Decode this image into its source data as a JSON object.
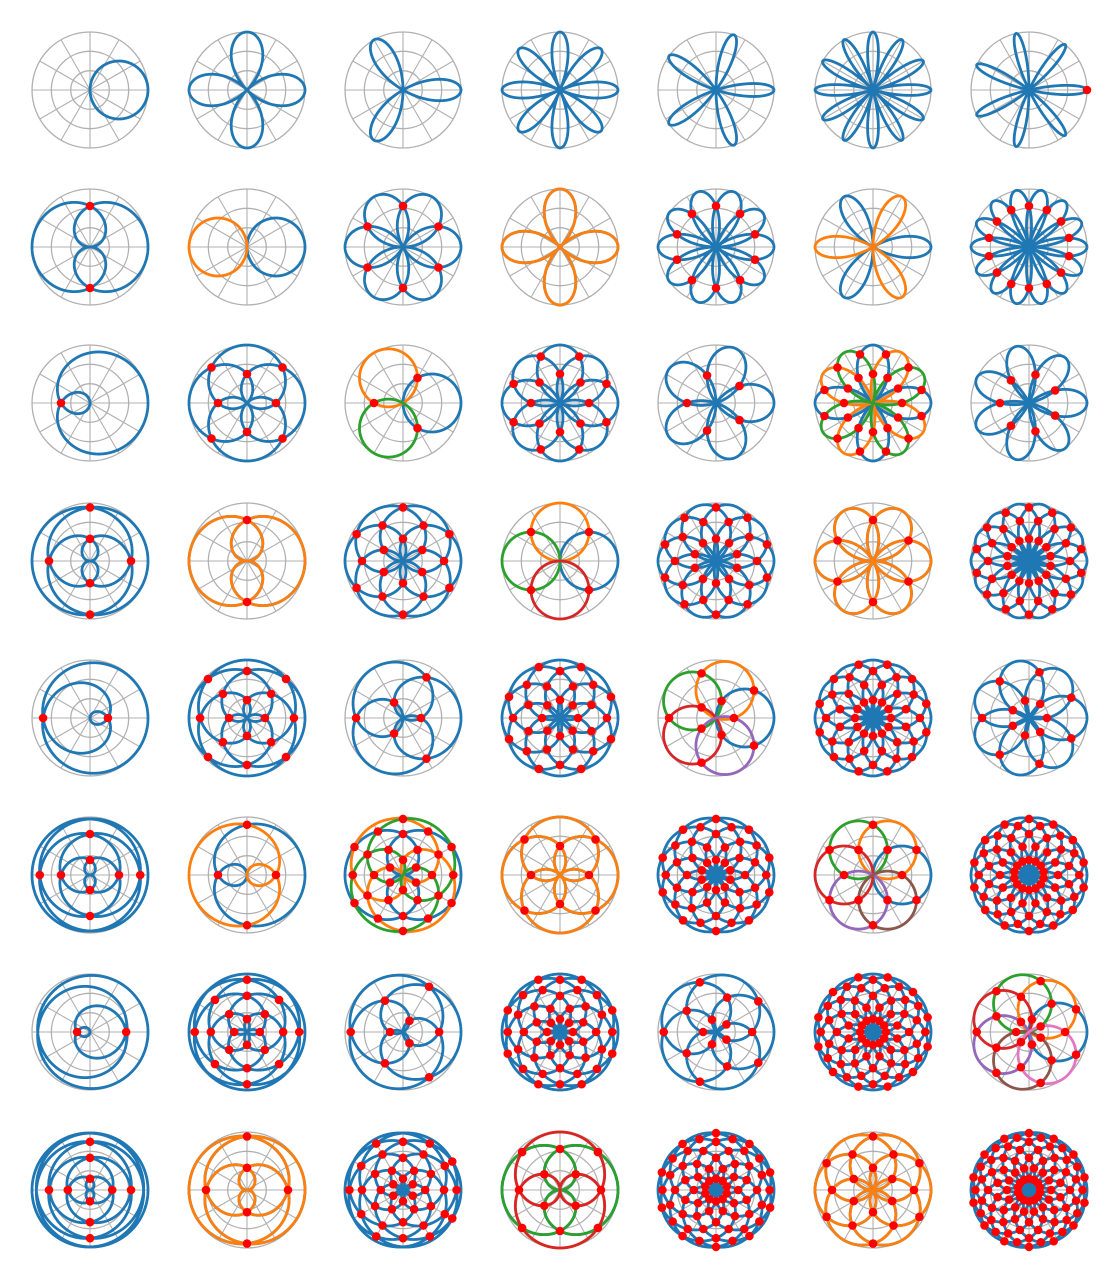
{
  "figure": {
    "rows": [
      1,
      2,
      3,
      4,
      5,
      6,
      7,
      8
    ],
    "cols": [
      1,
      2,
      3,
      4,
      5,
      6,
      7
    ],
    "polar_grid": {
      "rings": 3,
      "spokes": 12
    },
    "colors": {
      "grid": "#b0b0b0",
      "curve_palette": [
        "#1f77b4",
        "#ff7f0e",
        "#2ca02c",
        "#d62728",
        "#9467bd",
        "#8c564b",
        "#e377c2"
      ],
      "intersection_points": "#ff0000",
      "background": "#ffffff"
    }
  }
}
